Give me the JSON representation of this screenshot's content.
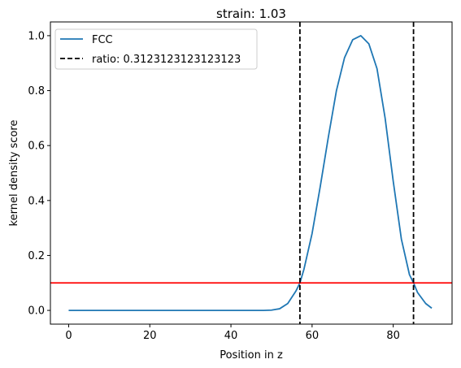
{
  "chart_data": {
    "type": "line",
    "title": "strain: 1.03",
    "xlabel": "Position in z",
    "ylabel": "kernel density score",
    "xlim": [
      -4.5,
      94.5
    ],
    "ylim": [
      -0.05,
      1.05
    ],
    "x_ticks": [
      "0",
      "20",
      "40",
      "60",
      "80"
    ],
    "y_ticks": [
      "0.0",
      "0.2",
      "0.4",
      "0.6",
      "0.8",
      "1.0"
    ],
    "grid": false,
    "legend_position": "top-left",
    "series": [
      {
        "name": "FCC",
        "color": "#1f77b4",
        "x": [
          0,
          5,
          10,
          15,
          20,
          25,
          30,
          35,
          40,
          45,
          48,
          50,
          52,
          54,
          56,
          57,
          58,
          60,
          62,
          64,
          66,
          68,
          70,
          72,
          74,
          76,
          78,
          80,
          82,
          84,
          85,
          86,
          88,
          89.5
        ],
        "y": [
          0.0,
          0.0,
          0.0,
          0.0,
          0.0,
          0.0,
          0.0,
          0.0,
          0.0,
          0.0,
          0.0,
          0.001,
          0.006,
          0.025,
          0.07,
          0.1,
          0.15,
          0.28,
          0.45,
          0.63,
          0.8,
          0.92,
          0.985,
          1.0,
          0.97,
          0.88,
          0.7,
          0.47,
          0.26,
          0.13,
          0.1,
          0.065,
          0.025,
          0.008
        ]
      }
    ],
    "vlines": {
      "name": "ratio: 0.3123123123123123",
      "color": "#000000",
      "style": "dashed",
      "x": [
        57,
        85
      ]
    },
    "hline": {
      "y": 0.1,
      "color": "#ff0000"
    }
  }
}
